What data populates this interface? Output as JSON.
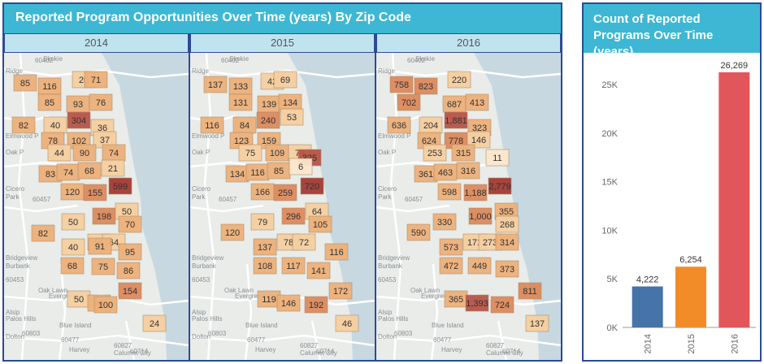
{
  "left_panel": {
    "title": "Reported Program Opportunities Over Time (years) By Zip Code",
    "years": [
      "2014",
      "2015",
      "2016"
    ]
  },
  "right_panel": {
    "title_line1": "Count of Reported",
    "title_line2": "Programs Over Time (years)"
  },
  "map_place_labels": [
    "Skokie",
    "Ridge",
    "Elmwood P",
    "Oak P",
    "Cicero",
    "Park",
    "Bridgeview",
    "Burbank",
    "Oak Lawn",
    "Evergreen",
    "Alsip",
    "Palos Hills",
    "Blue Island",
    "Dolton",
    "Harvey",
    "Calumet City",
    "60714",
    "60402",
    "60457",
    "60453",
    "60803",
    "60827",
    "60477"
  ],
  "maps": {
    "2014": [
      "85",
      "116",
      "20",
      "71",
      "85",
      "93",
      "76",
      "82",
      "40",
      "304",
      "36",
      "78",
      "102",
      "37",
      "44",
      "90",
      "74",
      "83",
      "74",
      "68",
      "21",
      "599",
      "120",
      "155",
      "198",
      "50",
      "70",
      "82",
      "50",
      "56",
      "64",
      "95",
      "40",
      "91",
      "68",
      "75",
      "86",
      "154",
      "50",
      "84",
      "100",
      "24"
    ],
    "2015": [
      "137",
      "133",
      "42",
      "69",
      "131",
      "139",
      "134",
      "116",
      "84",
      "240",
      "53",
      "123",
      "159",
      "75",
      "109",
      "74",
      "325",
      "134",
      "116",
      "85",
      "6",
      "720",
      "166",
      "259",
      "296",
      "64",
      "105",
      "120",
      "79",
      "78",
      "72",
      "137",
      "116",
      "108",
      "117",
      "141",
      "172",
      "119",
      "146",
      "192",
      "46"
    ],
    "2016": [
      "758",
      "823",
      "220",
      "702",
      "687",
      "413",
      "636",
      "204",
      "1,881",
      "323",
      "624",
      "778",
      "146",
      "253",
      "315",
      "11",
      "361",
      "463",
      "316",
      "2,779",
      "598",
      "1,188",
      "1,000",
      "355",
      "330",
      "268",
      "590",
      "573",
      "171",
      "273",
      "314",
      "472",
      "449",
      "373",
      "365",
      "1,393",
      "724",
      "811",
      "137"
    ]
  },
  "colors": {
    "header": "#3db7d4",
    "year_bar": "#bfe4ef",
    "border": "#2e4a94",
    "bar_2014": "#4673a8",
    "bar_2015": "#f28c28",
    "bar_2016": "#e1565a",
    "choropleth_scale": [
      "#fbe7cc",
      "#f6cfa0",
      "#eeb17a",
      "#dd8a5c",
      "#b95447",
      "#a43a33"
    ]
  },
  "chart_data": {
    "type": "bar",
    "title": "Count of Reported Programs Over Time (years)",
    "categories": [
      "2014",
      "2015",
      "2016"
    ],
    "values": [
      4222,
      6254,
      26269
    ],
    "value_labels": [
      "4,222",
      "6,254",
      "26,269"
    ],
    "bar_colors": [
      "#4673a8",
      "#f28c28",
      "#e1565a"
    ],
    "yticks": [
      0,
      5000,
      10000,
      15000,
      20000,
      25000
    ],
    "ytick_labels": [
      "0K",
      "5K",
      "10K",
      "15K",
      "20K",
      "25K"
    ],
    "ylim": [
      0,
      26269
    ],
    "xlabel": "",
    "ylabel": "",
    "grid": false
  }
}
